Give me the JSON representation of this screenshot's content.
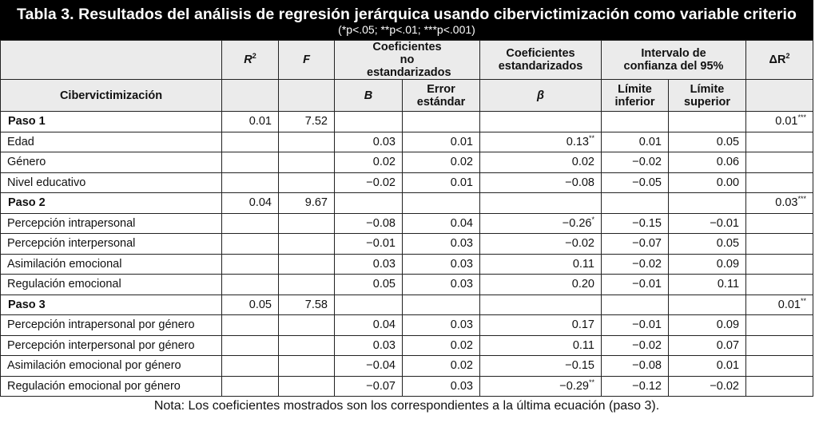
{
  "title": {
    "main": "Tabla 3. Resultados del análisis de regresión jerárquica usando cibervictimización como variable criterio",
    "sub": "(*p<.05; **p<.01; ***p<.001)"
  },
  "header": {
    "r2": "R",
    "r2_sup": "2",
    "f": "F",
    "unstd": "Coeficientes no estandarizados",
    "std": "Coeficientes estandarizados",
    "ci": "Intervalo de confianza del 95%",
    "delta_r2": "ΔR",
    "delta_r2_sup": "2",
    "criterion": "Cibervictimización",
    "b": "B",
    "se": "Error estándar",
    "beta": "β",
    "lower": "Límite inferior",
    "upper": "Límite superior"
  },
  "rows": [
    {
      "label": "Paso 1",
      "r2": "0.01",
      "f": "7.52",
      "b": "",
      "se": "",
      "beta": "",
      "lo": "",
      "hi": "",
      "dr2": "0.01***"
    },
    {
      "label": "Edad",
      "r2": "",
      "f": "",
      "b": "0.03",
      "se": "0.01",
      "beta": "0.13**",
      "lo": "0.01",
      "hi": "0.05",
      "dr2": ""
    },
    {
      "label": "Género",
      "r2": "",
      "f": "",
      "b": "0.02",
      "se": "0.02",
      "beta": "0.02",
      "lo": "−0.02",
      "hi": "0.06",
      "dr2": ""
    },
    {
      "label": "Nivel educativo",
      "r2": "",
      "f": "",
      "b": "−0.02",
      "se": "0.01",
      "beta": "−0.08",
      "lo": "−0.05",
      "hi": "0.00",
      "dr2": ""
    },
    {
      "label": "Paso 2",
      "r2": "0.04",
      "f": "9.67",
      "b": "",
      "se": "",
      "beta": "",
      "lo": "",
      "hi": "",
      "dr2": "0.03***"
    },
    {
      "label": "Percepción intrapersonal",
      "r2": "",
      "f": "",
      "b": "−0.08",
      "se": "0.04",
      "beta": "−0.26*",
      "lo": "−0.15",
      "hi": "−0.01",
      "dr2": ""
    },
    {
      "label": "Percepción interpersonal",
      "r2": "",
      "f": "",
      "b": "−0.01",
      "se": "0.03",
      "beta": "−0.02",
      "lo": "−0.07",
      "hi": "0.05",
      "dr2": ""
    },
    {
      "label": "Asimilación emocional",
      "r2": "",
      "f": "",
      "b": "0.03",
      "se": "0.03",
      "beta": "0.11",
      "lo": "−0.02",
      "hi": "0.09",
      "dr2": ""
    },
    {
      "label": "Regulación emocional",
      "r2": "",
      "f": "",
      "b": "0.05",
      "se": "0.03",
      "beta": "0.20",
      "lo": "−0.01",
      "hi": "0.11",
      "dr2": ""
    },
    {
      "label": "Paso 3",
      "r2": "0.05",
      "f": "7.58",
      "b": "",
      "se": "",
      "beta": "",
      "lo": "",
      "hi": "",
      "dr2": "0.01**"
    },
    {
      "label": "Percepción intrapersonal por género",
      "r2": "",
      "f": "",
      "b": "0.04",
      "se": "0.03",
      "beta": "0.17",
      "lo": "−0.01",
      "hi": "0.09",
      "dr2": ""
    },
    {
      "label": "Percepción interpersonal por género",
      "r2": "",
      "f": "",
      "b": "0.03",
      "se": "0.02",
      "beta": "0.11",
      "lo": "−0.02",
      "hi": "0.07",
      "dr2": ""
    },
    {
      "label": "Asimilación emocional por género",
      "r2": "",
      "f": "",
      "b": "−0.04",
      "se": "0.02",
      "beta": "−0.15",
      "lo": "−0.08",
      "hi": "0.01",
      "dr2": ""
    },
    {
      "label": "Regulación emocional por género",
      "r2": "",
      "f": "",
      "b": "−0.07",
      "se": "0.03",
      "beta": "−0.29**",
      "lo": "−0.12",
      "hi": "−0.02",
      "dr2": ""
    }
  ],
  "note": "Nota: Los coeficientes mostrados son los correspondientes a la última ecuación (paso 3)."
}
